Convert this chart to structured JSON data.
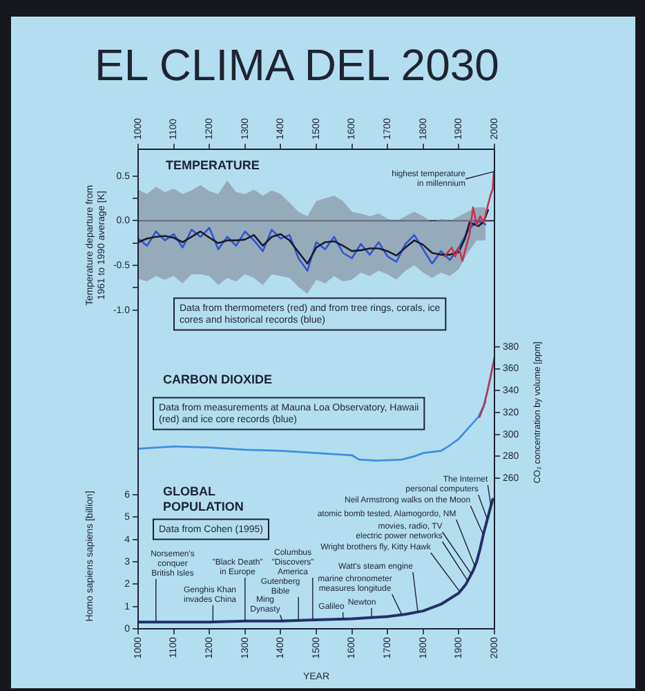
{
  "chart_data": [
    {
      "type": "line",
      "title": "EL CLIMA DEL 2030",
      "ylabel": "Temperature departure from 1961 to 1990 average [K]",
      "xlim": [
        1000,
        2000
      ],
      "x2lim": [
        1000,
        2000
      ],
      "x2ticks": [
        1000,
        1100,
        1200,
        1300,
        1400,
        1500,
        1600,
        1700,
        1800,
        1900,
        2000
      ],
      "ylim": [
        -1.35,
        0.8
      ],
      "yticks": [
        0.5,
        {
          "value": 0.25,
          "label": null
        },
        {
          "value": 0,
          "label": "0.0"
        },
        {
          "value": -0.25,
          "label": null
        },
        -0.5,
        {
          "value": -0.75,
          "label": null
        },
        {
          "value": -1,
          "label": "-1.0"
        }
      ],
      "ref_lines": [
        {
          "axis": "y",
          "value": 0,
          "color": "#2a2d3a"
        }
      ],
      "annotations": [
        "TEMPERATURE",
        "Data from thermometers (red) and from tree rings, corals, ice cores and historical records (blue)",
        {
          "text": "highest temperature in millennium",
          "x": 1998,
          "y": 0.55
        }
      ],
      "series": [
        {
          "color": "#2f55d4",
          "x": [
            1000,
            1025,
            1050,
            1075,
            1100,
            1125,
            1150,
            1175,
            1200,
            1225,
            1250,
            1275,
            1300,
            1325,
            1350,
            1375,
            1400,
            1425,
            1450,
            1475,
            1500,
            1525,
            1550,
            1575,
            1600,
            1625,
            1650,
            1675,
            1700,
            1725,
            1750,
            1775,
            1800,
            1825,
            1850,
            1875,
            1900,
            1925,
            1950,
            1975
          ],
          "values": [
            -0.2,
            -0.28,
            -0.12,
            -0.22,
            -0.15,
            -0.3,
            -0.1,
            -0.18,
            -0.08,
            -0.32,
            -0.18,
            -0.28,
            -0.12,
            -0.22,
            -0.34,
            -0.1,
            -0.2,
            -0.16,
            -0.42,
            -0.56,
            -0.24,
            -0.32,
            -0.18,
            -0.36,
            -0.42,
            -0.26,
            -0.38,
            -0.24,
            -0.4,
            -0.46,
            -0.26,
            -0.16,
            -0.32,
            -0.48,
            -0.34,
            -0.44,
            -0.3,
            -0.12,
            0.0,
            -0.04
          ],
          "lower": [
            -0.65,
            -0.68,
            -0.62,
            -0.66,
            -0.62,
            -0.7,
            -0.6,
            -0.6,
            -0.62,
            -0.72,
            -0.64,
            -0.68,
            -0.6,
            -0.64,
            -0.72,
            -0.6,
            -0.62,
            -0.64,
            -0.74,
            -0.82,
            -0.66,
            -0.7,
            -0.62,
            -0.68,
            -0.66,
            -0.58,
            -0.62,
            -0.56,
            -0.6,
            -0.66,
            -0.56,
            -0.5,
            -0.58,
            -0.64,
            -0.58,
            -0.62,
            -0.54,
            -0.36,
            -0.22,
            -0.22
          ],
          "upper": [
            0.35,
            0.3,
            0.38,
            0.32,
            0.36,
            0.3,
            0.34,
            0.4,
            0.33,
            0.3,
            0.45,
            0.32,
            0.3,
            0.35,
            0.28,
            0.34,
            0.3,
            0.2,
            0.1,
            0.05,
            0.22,
            0.25,
            0.28,
            0.22,
            0.1,
            0.08,
            0.05,
            0.08,
            0.02,
            0.0,
            0.05,
            0.1,
            0.05,
            -0.02,
            0.02,
            0.0,
            0.05,
            0.1,
            0.15,
            0.15
          ]
        },
        {
          "color": "#1a1a2e",
          "x": [
            1000,
            1025,
            1050,
            1075,
            1100,
            1125,
            1150,
            1175,
            1200,
            1225,
            1250,
            1275,
            1300,
            1325,
            1350,
            1375,
            1400,
            1425,
            1450,
            1475,
            1500,
            1525,
            1550,
            1575,
            1600,
            1625,
            1650,
            1675,
            1700,
            1725,
            1750,
            1775,
            1800,
            1825,
            1850,
            1875,
            1900,
            1917,
            1930,
            1955,
            1970,
            1982
          ],
          "values": [
            -0.24,
            -0.2,
            -0.18,
            -0.17,
            -0.19,
            -0.24,
            -0.18,
            -0.12,
            -0.19,
            -0.25,
            -0.22,
            -0.22,
            -0.21,
            -0.16,
            -0.28,
            -0.18,
            -0.15,
            -0.22,
            -0.35,
            -0.48,
            -0.3,
            -0.24,
            -0.23,
            -0.28,
            -0.34,
            -0.33,
            -0.31,
            -0.31,
            -0.34,
            -0.39,
            -0.3,
            -0.22,
            -0.27,
            -0.36,
            -0.38,
            -0.38,
            -0.35,
            -0.2,
            -0.02,
            -0.06,
            -0.01,
            0.12
          ]
        },
        {
          "color": "#c8324f",
          "x": [
            1860,
            1870,
            1880,
            1890,
            1900,
            1910,
            1920,
            1930,
            1940,
            1945,
            1950,
            1960,
            1970,
            1980,
            1990,
            1995,
            1998,
            2000
          ],
          "values": [
            -0.4,
            -0.35,
            -0.3,
            -0.4,
            -0.3,
            -0.45,
            -0.3,
            -0.15,
            0.15,
            0.05,
            -0.05,
            0.05,
            -0.02,
            0.15,
            0.3,
            0.35,
            0.55,
            0.45
          ]
        }
      ]
    },
    {
      "type": "line",
      "xlim": [
        1000,
        2000
      ],
      "y2lim": [
        255,
        385
      ],
      "y2ticks": [
        260,
        280,
        300,
        320,
        340,
        360,
        380
      ],
      "y2label": "CO₂ concentration by volume [ppm]",
      "annotations": [
        "CARBON DIOXIDE",
        "Data from measurements at Mauna Loa Observatory, Hawaii (red) and ice core records (blue)"
      ],
      "series": [
        {
          "color": "#3f8ee0",
          "axis": "y2",
          "x": [
            1000,
            1100,
            1200,
            1300,
            1400,
            1500,
            1600,
            1620,
            1670,
            1740,
            1775,
            1800,
            1850,
            1870,
            1900,
            1930,
            1955,
            1975
          ],
          "values": [
            287,
            289,
            288,
            286,
            285,
            283,
            281,
            277,
            276,
            277,
            280,
            283,
            285,
            289,
            296,
            307,
            316,
            330
          ]
        },
        {
          "color": "#b03a5a",
          "axis": "y2",
          "x": [
            1958,
            1970,
            1980,
            1990,
            2000
          ],
          "values": [
            316,
            326,
            339,
            354,
            370
          ]
        }
      ]
    },
    {
      "type": "line",
      "xlim": [
        1000,
        2000
      ],
      "xticks": [
        1000,
        1100,
        1200,
        1300,
        1400,
        1500,
        1600,
        1700,
        1800,
        1900,
        2000
      ],
      "xlabel": "YEAR",
      "ylim": [
        0,
        6.5
      ],
      "yticks": [
        0,
        1,
        2,
        3,
        4,
        5,
        6
      ],
      "ylabel": "Homo sapiens sapiens [billion]",
      "annotations": [
        "GLOBAL POPULATION",
        "Data from Cohen (1995)",
        {
          "text": "Norsemen's conquer British Isles",
          "x": 1050,
          "y": 0.3
        },
        {
          "text": "Genghis Khan invades China",
          "x": 1210,
          "y": 0.3
        },
        {
          "text": "\"Black Death\" in Europe",
          "x": 1300,
          "y": 0.35
        },
        {
          "text": "Ming Dynasty",
          "x": 1405,
          "y": 0.35
        },
        {
          "text": "Gutenberg Bible",
          "x": 1450,
          "y": 0.38
        },
        {
          "text": "Columbus \"Discovers\" America",
          "x": 1490,
          "y": 0.4
        },
        {
          "text": "Galileo",
          "x": 1575,
          "y": 0.44
        },
        {
          "text": "Newton",
          "x": 1655,
          "y": 0.5
        },
        {
          "text": "marine chronometer measures longitude",
          "x": 1740,
          "y": 0.63
        },
        {
          "text": "Watt's steam engine",
          "x": 1785,
          "y": 0.75
        },
        {
          "text": "Wright brothers fly, Kitty Hawk",
          "x": 1903,
          "y": 1.66
        },
        {
          "text": "electric power networks",
          "x": 1925,
          "y": 2.15
        },
        {
          "text": "movies, radio, TV",
          "x": 1935,
          "y": 2.45
        },
        {
          "text": "atomic bomb tested, Alamogordo, NM",
          "x": 1945,
          "y": 2.8
        },
        {
          "text": "Neil Armstrong walks on the Moon",
          "x": 1969,
          "y": 4.2
        },
        {
          "text": "personal computers",
          "x": 1980,
          "y": 4.9
        },
        {
          "text": "The Internet",
          "x": 1990,
          "y": 5.5
        }
      ],
      "series": [
        {
          "color": "#22306a",
          "x": [
            1000,
            1100,
            1200,
            1300,
            1400,
            1500,
            1600,
            1700,
            1750,
            1800,
            1850,
            1900,
            1920,
            1940,
            1950,
            1960,
            1970,
            1980,
            1990,
            1995
          ],
          "values": [
            0.3,
            0.3,
            0.3,
            0.35,
            0.35,
            0.4,
            0.45,
            0.55,
            0.65,
            0.8,
            1.1,
            1.6,
            2.0,
            2.6,
            3.0,
            3.6,
            4.3,
            4.9,
            5.5,
            5.8
          ]
        }
      ]
    }
  ]
}
